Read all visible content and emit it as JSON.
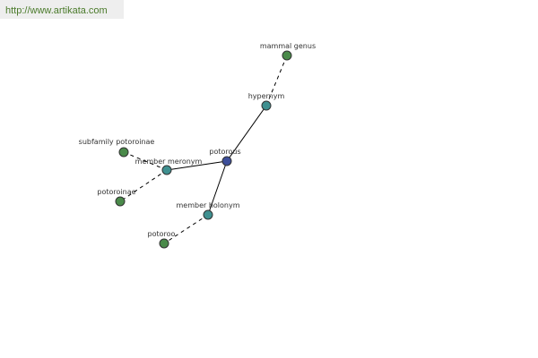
{
  "header": {
    "url": "http://www.artikata.com"
  },
  "nodes": [
    {
      "label": "potorous"
    },
    {
      "label": "hypernym"
    },
    {
      "label": "mammal genus"
    },
    {
      "label": "member meronym"
    },
    {
      "label": "subfamily potoroinae"
    },
    {
      "label": "potoroinae"
    },
    {
      "label": "member holonym"
    },
    {
      "label": "potoroo"
    }
  ]
}
